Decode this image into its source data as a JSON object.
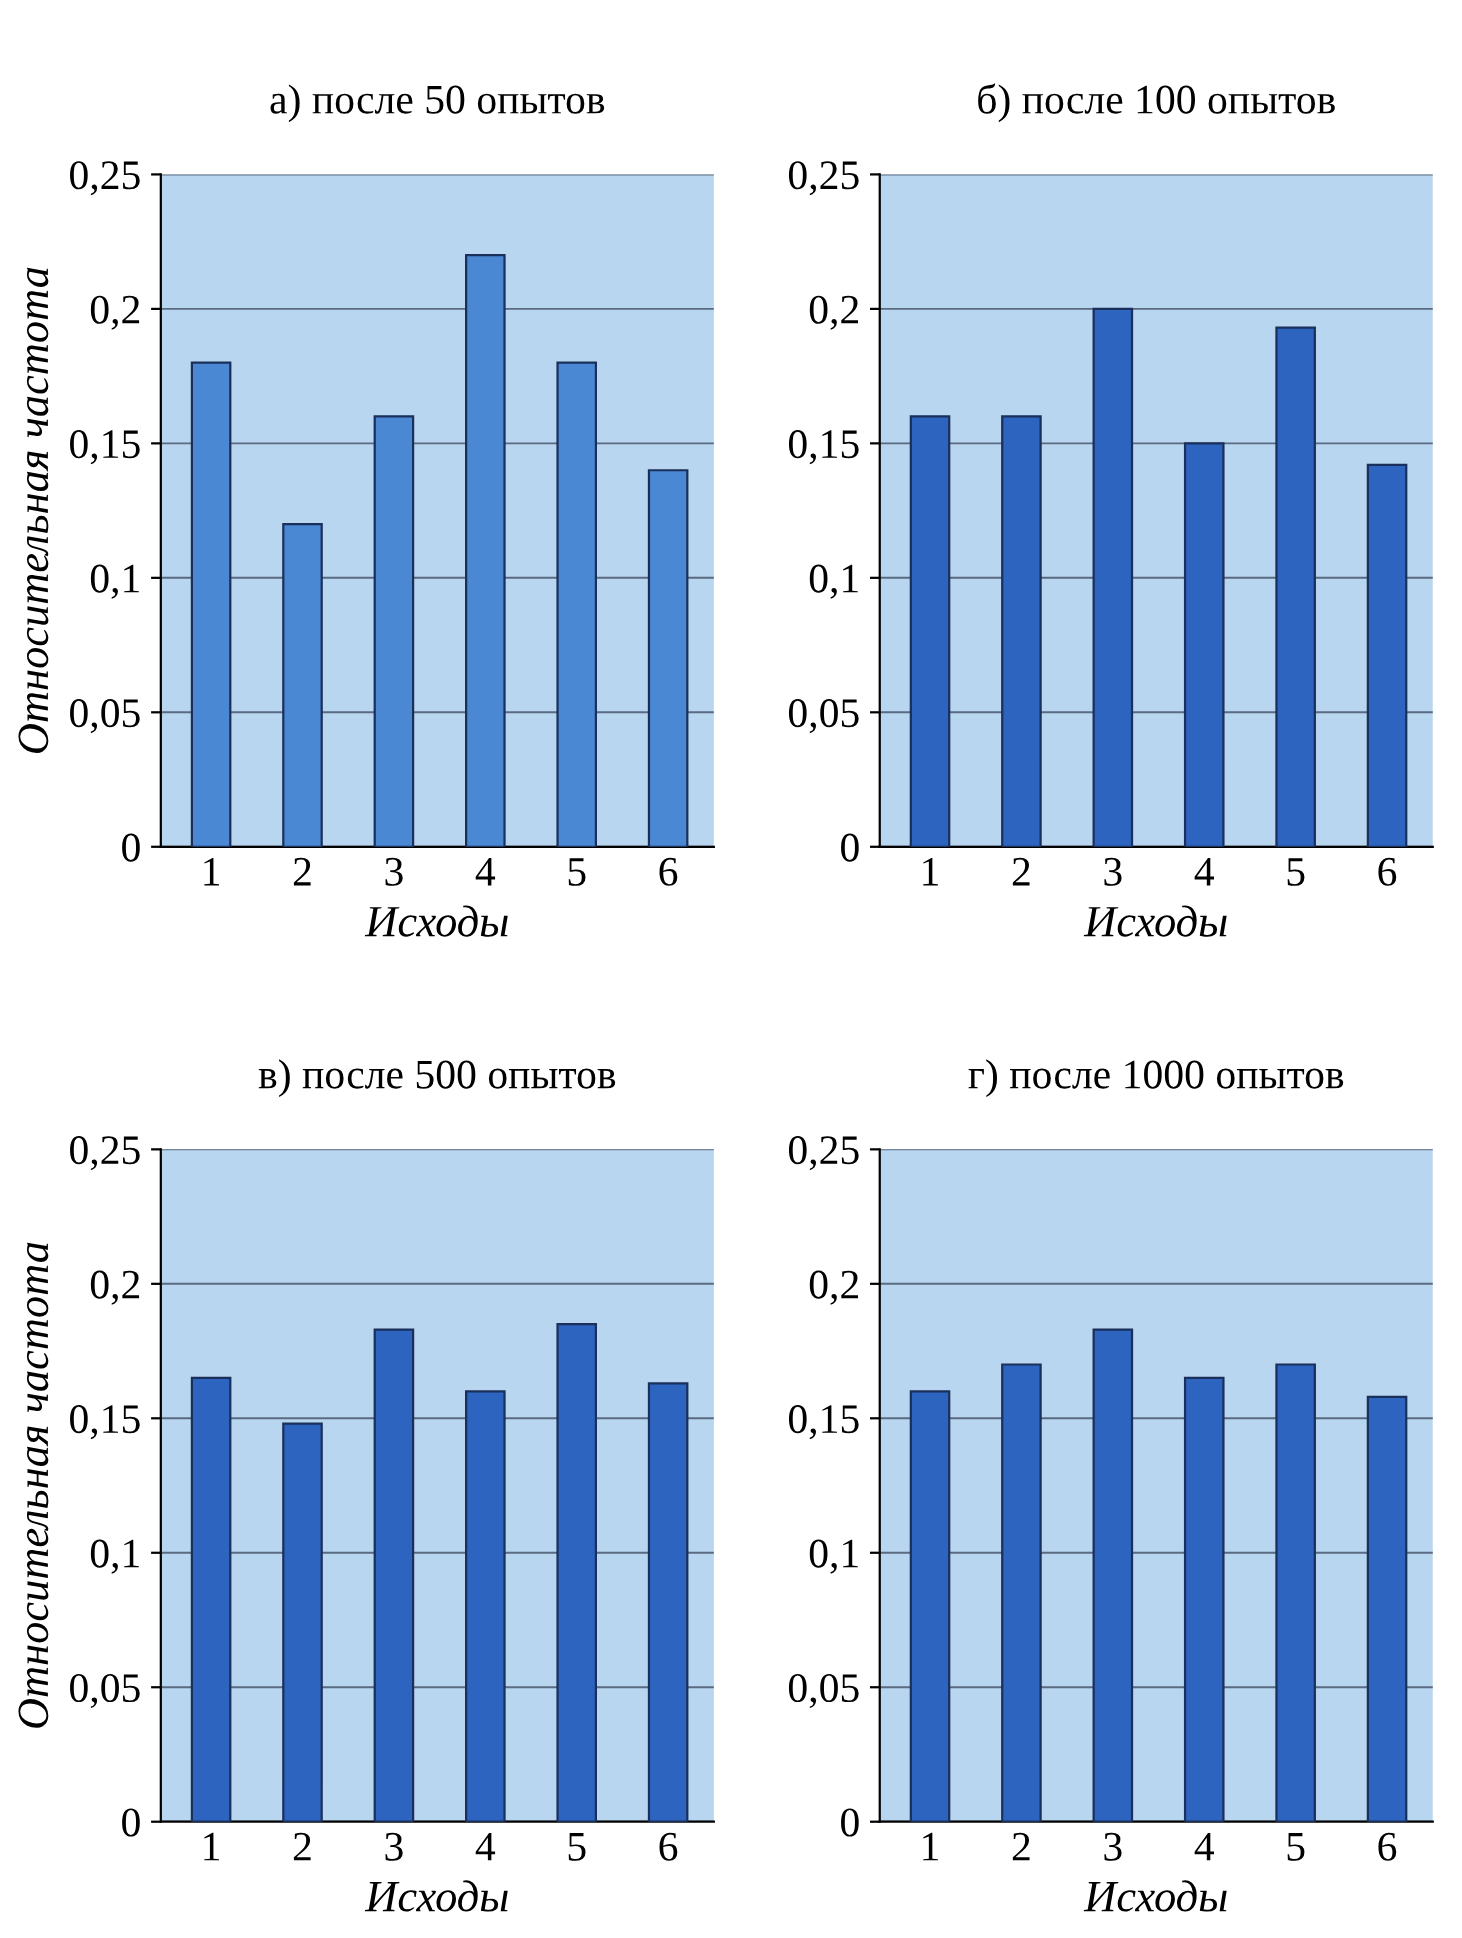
{
  "chart_data": [
    {
      "type": "bar",
      "title": "а) после 50 опытов",
      "xlabel": "Исходы",
      "ylabel": "Относительная частота",
      "categories": [
        "1",
        "2",
        "3",
        "4",
        "5",
        "6"
      ],
      "values": [
        0.18,
        0.12,
        0.16,
        0.22,
        0.18,
        0.14
      ],
      "color": "#4a88d4",
      "ylim": [
        0,
        0.25
      ],
      "yticks": [
        0,
        {
          "value": 0.05,
          "label": "0,05"
        },
        {
          "value": 0.1,
          "label": "0,1"
        },
        {
          "value": 0.15,
          "label": "0,15"
        },
        {
          "value": 0.2,
          "label": "0,2"
        },
        {
          "value": 0.25,
          "label": "0,25"
        }
      ],
      "grid": "y"
    },
    {
      "type": "bar",
      "title": "б) после 100 опытов",
      "xlabel": "Исходы",
      "categories": [
        "1",
        "2",
        "3",
        "4",
        "5",
        "6"
      ],
      "values": [
        0.16,
        0.16,
        0.2,
        0.15,
        0.193,
        0.142
      ],
      "color": "#2d64c0",
      "ylim": [
        0,
        0.25
      ],
      "yticks": [
        0,
        {
          "value": 0.05,
          "label": "0,05"
        },
        {
          "value": 0.1,
          "label": "0,1"
        },
        {
          "value": 0.15,
          "label": "0,15"
        },
        {
          "value": 0.2,
          "label": "0,2"
        },
        {
          "value": 0.25,
          "label": "0,25"
        }
      ],
      "grid": "y"
    },
    {
      "type": "bar",
      "title": "в) после 500 опытов",
      "xlabel": "Исходы",
      "ylabel": "Относительная частота",
      "categories": [
        "1",
        "2",
        "3",
        "4",
        "5",
        "6"
      ],
      "values": [
        0.165,
        0.148,
        0.183,
        0.16,
        0.185,
        0.163
      ],
      "color": "#2d64c0",
      "ylim": [
        0,
        0.25
      ],
      "yticks": [
        0,
        {
          "value": 0.05,
          "label": "0,05"
        },
        {
          "value": 0.1,
          "label": "0,1"
        },
        {
          "value": 0.15,
          "label": "0,15"
        },
        {
          "value": 0.2,
          "label": "0,2"
        },
        {
          "value": 0.25,
          "label": "0,25"
        }
      ],
      "grid": "y"
    },
    {
      "type": "bar",
      "title": "г) после 1000 опытов",
      "xlabel": "Исходы",
      "categories": [
        "1",
        "2",
        "3",
        "4",
        "5",
        "6"
      ],
      "values": [
        0.16,
        0.17,
        0.183,
        0.165,
        0.17,
        0.158
      ],
      "color": "#2d64c0",
      "ylim": [
        0,
        0.25
      ],
      "yticks": [
        0,
        {
          "value": 0.05,
          "label": "0,05"
        },
        {
          "value": 0.1,
          "label": "0,1"
        },
        {
          "value": 0.15,
          "label": "0,15"
        },
        {
          "value": 0.2,
          "label": "0,2"
        },
        {
          "value": 0.25,
          "label": "0,25"
        }
      ],
      "grid": "y"
    }
  ]
}
